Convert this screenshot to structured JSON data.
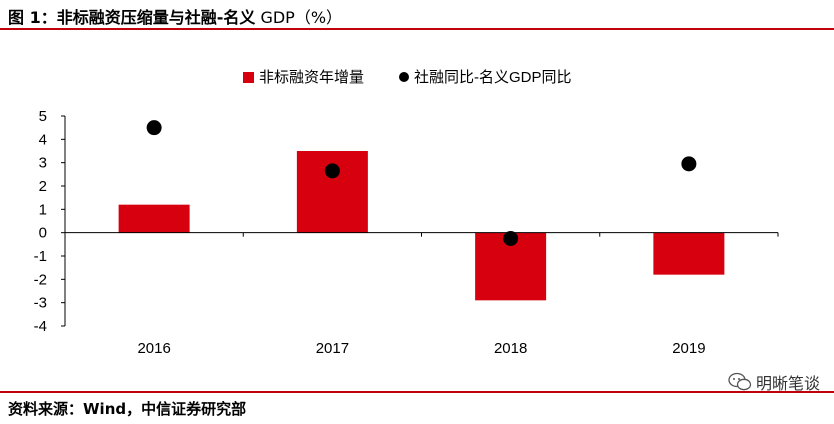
{
  "header": {
    "title_main": "图 1：非标融资压缩量与社融-名义",
    "title_gdp": " GDP（%）"
  },
  "footer": {
    "source": "资料来源：Wind，中信证券研究部",
    "watermark": "明晰笔谈"
  },
  "chart_data": {
    "type": "bar",
    "categories": [
      "2016",
      "2017",
      "2018",
      "2019"
    ],
    "series": [
      {
        "name": "非标融资年增量",
        "kind": "bar",
        "color": "#d7000f",
        "values": [
          1.2,
          3.5,
          -2.9,
          -1.8
        ]
      },
      {
        "name": "社融同比-名义GDP同比",
        "kind": "scatter",
        "color": "#000000",
        "values": [
          4.5,
          2.65,
          -0.25,
          2.95
        ]
      }
    ],
    "ylim": [
      -4,
      5
    ],
    "yticks": [
      "5",
      "4",
      "3",
      "2",
      "1",
      "0",
      "-1",
      "-2",
      "-3",
      "-4"
    ],
    "legend": "top-center",
    "grid": false
  }
}
